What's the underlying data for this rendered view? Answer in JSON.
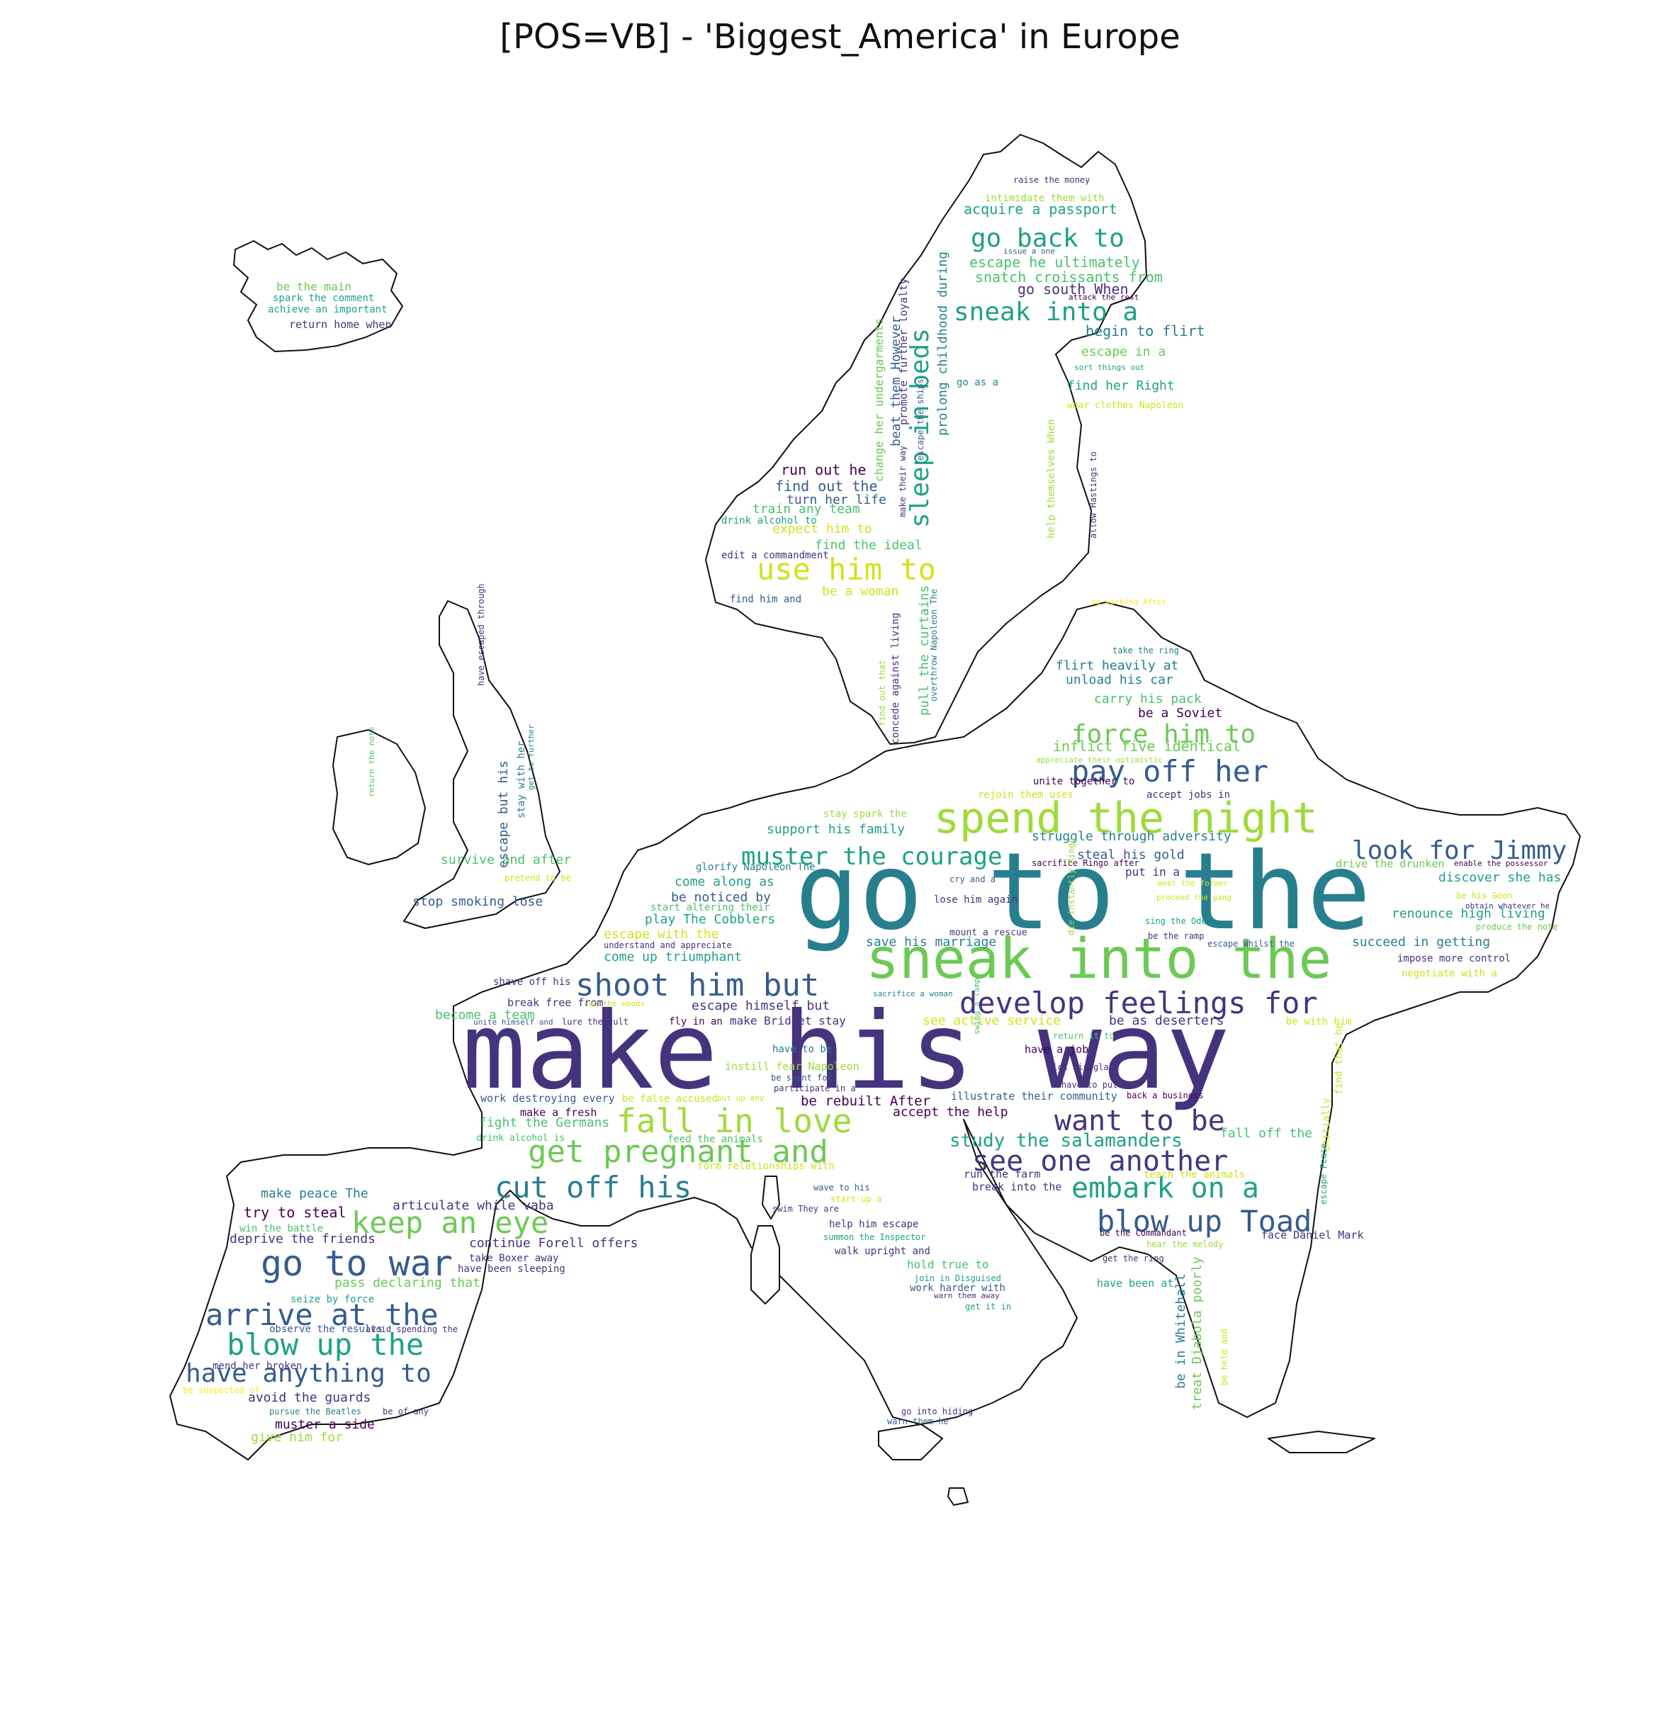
{
  "title": "[POS=VB] - 'Biggest_America' in Europe",
  "palette": [
    "#440154",
    "#46337e",
    "#365c8d",
    "#277f8e",
    "#1fa187",
    "#4ac16d",
    "#9fda3a",
    "#fde725"
  ],
  "words": [
    {
      "text": "make his way",
      "color": "#46337e"
    },
    {
      "text": "go to the",
      "color": "#277f8e"
    },
    {
      "text": "sneak into the",
      "color": "#6cc955"
    },
    {
      "text": "spend the night",
      "color": "#9fda3a"
    },
    {
      "text": "develop feelings for",
      "color": "#46337e"
    },
    {
      "text": "shoot him but",
      "color": "#365c8d"
    },
    {
      "text": "fall in love",
      "color": "#9fda3a"
    },
    {
      "text": "get pregnant and",
      "color": "#6cc955"
    },
    {
      "text": "see one another",
      "color": "#46337e"
    },
    {
      "text": "cut off his",
      "color": "#277f8e"
    },
    {
      "text": "embark on a",
      "color": "#1fa187"
    },
    {
      "text": "blow up Toad",
      "color": "#365c8d"
    },
    {
      "text": "want to be",
      "color": "#46337e"
    },
    {
      "text": "go to war",
      "color": "#365c8d"
    },
    {
      "text": "keep an eye",
      "color": "#6cc955"
    },
    {
      "text": "arrive at the",
      "color": "#365c8d"
    },
    {
      "text": "blow up the",
      "color": "#1fa187"
    },
    {
      "text": "have anything to",
      "color": "#365c8d"
    },
    {
      "text": "use him to",
      "color": "#d2e21b"
    },
    {
      "text": "go back to",
      "color": "#1fa187"
    },
    {
      "text": "sneak into a",
      "color": "#1fa187"
    },
    {
      "text": "sleep in beds",
      "color": "#1fa187"
    },
    {
      "text": "pay off her",
      "color": "#365c8d"
    },
    {
      "text": "force him to",
      "color": "#6cc955"
    },
    {
      "text": "look for Jimmy",
      "color": "#365c8d"
    },
    {
      "text": "muster the courage",
      "color": "#1fa187"
    },
    {
      "text": "study the salamanders",
      "color": "#1fa187"
    },
    {
      "text": "acquire a passport",
      "color": "#1fa187"
    },
    {
      "text": "escape he ultimately",
      "color": "#4ac16d"
    },
    {
      "text": "snatch croissants from",
      "color": "#4ac16d"
    },
    {
      "text": "go south When",
      "color": "#46337e"
    },
    {
      "text": "begin to flirt",
      "color": "#277f8e"
    },
    {
      "text": "escape in a",
      "color": "#6cc955"
    },
    {
      "text": "find her Right",
      "color": "#1fa187"
    },
    {
      "text": "intimidate them with",
      "color": "#9fda3a"
    },
    {
      "text": "raise the money",
      "color": "#46337e"
    },
    {
      "text": "issue a one",
      "color": "#365c8d"
    },
    {
      "text": "attack the rest",
      "color": "#440154"
    },
    {
      "text": "sort things out",
      "color": "#1fa187"
    },
    {
      "text": "wear clothes Napoleon",
      "color": "#d2e21b"
    },
    {
      "text": "go as a",
      "color": "#277f8e"
    },
    {
      "text": "prolong childhood during",
      "color": "#277f8e"
    },
    {
      "text": "beat them However",
      "color": "#365c8d"
    },
    {
      "text": "change her undergarments",
      "color": "#6cc955"
    },
    {
      "text": "promote further loyalty",
      "color": "#46337e"
    },
    {
      "text": "escape the ships",
      "color": "#365c8d"
    },
    {
      "text": "make their way",
      "color": "#46337e"
    },
    {
      "text": "help themselves When",
      "color": "#9fda3a"
    },
    {
      "text": "allow Hastings to",
      "color": "#46337e"
    },
    {
      "text": "run out he",
      "color": "#440154"
    },
    {
      "text": "find out the",
      "color": "#365c8d"
    },
    {
      "text": "turn her life",
      "color": "#365c8d"
    },
    {
      "text": "train any team",
      "color": "#4ac16d"
    },
    {
      "text": "drink alcohol to",
      "color": "#1fa187"
    },
    {
      "text": "expect him to",
      "color": "#d2e21b"
    },
    {
      "text": "find the ideal",
      "color": "#4ac16d"
    },
    {
      "text": "edit a commandment",
      "color": "#46337e"
    },
    {
      "text": "find him and",
      "color": "#365c8d"
    },
    {
      "text": "be a woman",
      "color": "#d2e21b"
    },
    {
      "text": "be working After",
      "color": "#fde725"
    },
    {
      "text": "pull the curtains",
      "color": "#4ac16d"
    },
    {
      "text": "overthrow Napoleon The",
      "color": "#277f8e"
    },
    {
      "text": "concede against living",
      "color": "#46337e"
    },
    {
      "text": "find out that",
      "color": "#9fda3a"
    },
    {
      "text": "take the ring",
      "color": "#277f8e"
    },
    {
      "text": "flirt heavily at",
      "color": "#277f8e"
    },
    {
      "text": "unload his car",
      "color": "#277f8e"
    },
    {
      "text": "carry his pack",
      "color": "#4ac16d"
    },
    {
      "text": "be a Soviet",
      "color": "#440154"
    },
    {
      "text": "inflict five identical",
      "color": "#6cc955"
    },
    {
      "text": "appreciate their optimistic",
      "color": "#9fda3a"
    },
    {
      "text": "unite together to",
      "color": "#440154"
    },
    {
      "text": "rejoin them uses",
      "color": "#d2e21b"
    },
    {
      "text": "accept jobs in",
      "color": "#46337e"
    },
    {
      "text": "stay spark the",
      "color": "#9fda3a"
    },
    {
      "text": "support his family",
      "color": "#1fa187"
    },
    {
      "text": "struggle through adversity",
      "color": "#277f8e"
    },
    {
      "text": "steal his gold",
      "color": "#365c8d"
    },
    {
      "text": "put in a",
      "color": "#46337e"
    },
    {
      "text": "sacrifice Ringo after",
      "color": "#440154"
    },
    {
      "text": "enable the possessor",
      "color": "#440154"
    },
    {
      "text": "drive the drunken",
      "color": "#6cc955"
    },
    {
      "text": "discover she has",
      "color": "#1fa187"
    },
    {
      "text": "be his Goon",
      "color": "#d2e21b"
    },
    {
      "text": "obtain whatever he",
      "color": "#46337e"
    },
    {
      "text": "renounce high living",
      "color": "#1fa187"
    },
    {
      "text": "produce the note",
      "color": "#6cc955"
    },
    {
      "text": "succeed in getting",
      "color": "#277f8e"
    },
    {
      "text": "impose more control",
      "color": "#46337e"
    },
    {
      "text": "negotiate with a",
      "color": "#d2e21b"
    },
    {
      "text": "meet the former",
      "color": "#d2e21b"
    },
    {
      "text": "proceed the gang",
      "color": "#d2e21b"
    },
    {
      "text": "sing the Ode",
      "color": "#1fa187"
    },
    {
      "text": "be the ramp",
      "color": "#46337e"
    },
    {
      "text": "escape Whilst the",
      "color": "#365c8d"
    },
    {
      "text": "cry and a",
      "color": "#365c8d"
    },
    {
      "text": "glorify Napoleon The",
      "color": "#277f8e"
    },
    {
      "text": "lose him again",
      "color": "#46337e"
    },
    {
      "text": "die instantly Ringo",
      "color": "#9fda3a"
    },
    {
      "text": "mount a rescue",
      "color": "#46337e"
    },
    {
      "text": "save his marriage",
      "color": "#277f8e"
    },
    {
      "text": "come along as",
      "color": "#1fa187"
    },
    {
      "text": "be noticed by",
      "color": "#365c8d"
    },
    {
      "text": "start altering their",
      "color": "#4ac16d"
    },
    {
      "text": "play The Cobblers",
      "color": "#1fa187"
    },
    {
      "text": "escape with the",
      "color": "#d2e21b"
    },
    {
      "text": "understand and appreciate",
      "color": "#46337e"
    },
    {
      "text": "come up triumphant",
      "color": "#1fa187"
    },
    {
      "text": "survive and after",
      "color": "#4ac16d"
    },
    {
      "text": "pretend to be",
      "color": "#d2e21b"
    },
    {
      "text": "stop smoking lose",
      "color": "#365c8d"
    },
    {
      "text": "escape but his",
      "color": "#365c8d"
    },
    {
      "text": "stay with her",
      "color": "#277f8e"
    },
    {
      "text": "have escaped through",
      "color": "#46337e"
    },
    {
      "text": "get to further",
      "color": "#277f8e"
    },
    {
      "text": "return the note",
      "color": "#4ac16d"
    },
    {
      "text": "be the main",
      "color": "#6cc955"
    },
    {
      "text": "spark the comment",
      "color": "#1fa187"
    },
    {
      "text": "achieve an important",
      "color": "#1fa187"
    },
    {
      "text": "return home when",
      "color": "#46337e"
    },
    {
      "text": "shave off his",
      "color": "#46337e"
    },
    {
      "text": "break free from",
      "color": "#46337e"
    },
    {
      "text": "become a team",
      "color": "#4ac16d"
    },
    {
      "text": "run the woods",
      "color": "#d2e21b"
    },
    {
      "text": "unite himself and",
      "color": "#365c8d"
    },
    {
      "text": "lure the cult",
      "color": "#46337e"
    },
    {
      "text": "escape himself but",
      "color": "#46337e"
    },
    {
      "text": "fly in an",
      "color": "#440154"
    },
    {
      "text": "make Bridget stay",
      "color": "#46337e"
    },
    {
      "text": "see active service",
      "color": "#d2e21b"
    },
    {
      "text": "sacrifice a woman",
      "color": "#277f8e"
    },
    {
      "text": "be as deserters",
      "color": "#46337e"
    },
    {
      "text": "be with him",
      "color": "#d2e21b"
    },
    {
      "text": "return it to",
      "color": "#4ac16d"
    },
    {
      "text": "have a job",
      "color": "#440154"
    },
    {
      "text": "swing a lamp",
      "color": "#4ac16d"
    },
    {
      "text": "pick his glass",
      "color": "#46337e"
    },
    {
      "text": "have to put",
      "color": "#46337e"
    },
    {
      "text": "back a business",
      "color": "#440154"
    },
    {
      "text": "have to be",
      "color": "#277f8e"
    },
    {
      "text": "instill fear Napoleon",
      "color": "#9fda3a"
    },
    {
      "text": "be spent for",
      "color": "#365c8d"
    },
    {
      "text": "participate in a",
      "color": "#46337e"
    },
    {
      "text": "work destroying every",
      "color": "#365c8d"
    },
    {
      "text": "be false accused",
      "color": "#d2e21b"
    },
    {
      "text": "put up any",
      "color": "#d2e21b"
    },
    {
      "text": "be rebuilt After",
      "color": "#440154"
    },
    {
      "text": "illustrate their community",
      "color": "#365c8d"
    },
    {
      "text": "make a fresh",
      "color": "#440154"
    },
    {
      "text": "fight the Germans",
      "color": "#4ac16d"
    },
    {
      "text": "accept the help",
      "color": "#440154"
    },
    {
      "text": "drink alcohol is",
      "color": "#4ac16d"
    },
    {
      "text": "feed the animals",
      "color": "#4ac16d"
    },
    {
      "text": "form relationships with",
      "color": "#d2e21b"
    },
    {
      "text": "fall off the",
      "color": "#4ac16d"
    },
    {
      "text": "find that he",
      "color": "#d2e21b"
    },
    {
      "text": "initially",
      "color": "#d2e21b"
    },
    {
      "text": "escape Pease",
      "color": "#1fa187"
    },
    {
      "text": "make peace The",
      "color": "#277f8e"
    },
    {
      "text": "articulate while vaba",
      "color": "#46337e"
    },
    {
      "text": "try to steal",
      "color": "#440154"
    },
    {
      "text": "win the battle",
      "color": "#4ac16d"
    },
    {
      "text": "deprive the friends",
      "color": "#46337e"
    },
    {
      "text": "continue Forell offers",
      "color": "#46337e"
    },
    {
      "text": "take Boxer away",
      "color": "#46337e"
    },
    {
      "text": "have been sleeping",
      "color": "#46337e"
    },
    {
      "text": "pass declaring that",
      "color": "#6cc955"
    },
    {
      "text": "seize by force",
      "color": "#1fa187"
    },
    {
      "text": "observe the results",
      "color": "#365c8d"
    },
    {
      "text": "avoid spending the",
      "color": "#46337e"
    },
    {
      "text": "mend her broken",
      "color": "#46337e"
    },
    {
      "text": "be suspected of",
      "color": "#fde725"
    },
    {
      "text": "avoid the guards",
      "color": "#46337e"
    },
    {
      "text": "pursue the Beatles",
      "color": "#277f8e"
    },
    {
      "text": "be of any",
      "color": "#46337e"
    },
    {
      "text": "muster a side",
      "color": "#440154"
    },
    {
      "text": "give him for",
      "color": "#9fda3a"
    },
    {
      "text": "run the farm",
      "color": "#46337e"
    },
    {
      "text": "break into the",
      "color": "#46337e"
    },
    {
      "text": "teach the animals",
      "color": "#d2e21b"
    },
    {
      "text": "wave to his",
      "color": "#365c8d"
    },
    {
      "text": "start up a",
      "color": "#d2e21b"
    },
    {
      "text": "swim They are",
      "color": "#46337e"
    },
    {
      "text": "help him escape",
      "color": "#46337e"
    },
    {
      "text": "summon the Inspector",
      "color": "#1fa187"
    },
    {
      "text": "walk upright and",
      "color": "#46337e"
    },
    {
      "text": "hold true to",
      "color": "#4ac16d"
    },
    {
      "text": "join in Disguised",
      "color": "#1fa187"
    },
    {
      "text": "work harder with",
      "color": "#365c8d"
    },
    {
      "text": "warn them away",
      "color": "#46337e"
    },
    {
      "text": "get it in",
      "color": "#1fa187"
    },
    {
      "text": "go into hiding",
      "color": "#46337e"
    },
    {
      "text": "warn them he",
      "color": "#365c8d"
    },
    {
      "text": "face Daniel Mark",
      "color": "#46337e"
    },
    {
      "text": "be the Commandant",
      "color": "#440154"
    },
    {
      "text": "hear the melody",
      "color": "#9fda3a"
    },
    {
      "text": "get the ring",
      "color": "#46337e"
    },
    {
      "text": "have been at",
      "color": "#1fa187"
    },
    {
      "text": "be in Whitehall",
      "color": "#277f8e"
    },
    {
      "text": "treat Djabola poorly",
      "color": "#6cc955"
    },
    {
      "text": "be held and",
      "color": "#d2e21b"
    }
  ]
}
